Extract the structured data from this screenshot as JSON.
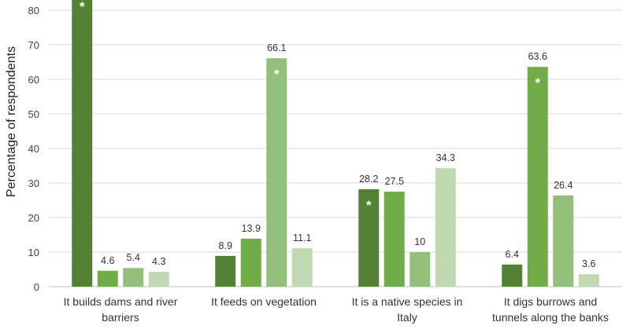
{
  "chart_data": {
    "type": "bar",
    "title": "",
    "xlabel": "",
    "ylabel": "Percentage of respondents",
    "ylim": [
      0,
      80
    ],
    "yticks": [
      0,
      10,
      20,
      30,
      40,
      50,
      60,
      70,
      80
    ],
    "grid": true,
    "categories": [
      [
        "It builds dams and river",
        "barriers"
      ],
      [
        "It feeds on vegetation"
      ],
      [
        "It is a native species in",
        "Italy"
      ],
      [
        "It digs burrows and",
        "tunnels along the banks"
      ]
    ],
    "series": [
      {
        "color": "#548235",
        "values": [
          null,
          8.9,
          28.2,
          6.4
        ],
        "labels": [
          "",
          "8.9",
          "28.2",
          "6.4"
        ],
        "stars": [
          true,
          false,
          true,
          false
        ]
      },
      {
        "color": "#70ad47",
        "values": [
          4.6,
          13.9,
          27.5,
          63.6
        ],
        "labels": [
          "4.6",
          "13.9",
          "27.5",
          "63.6"
        ],
        "stars": [
          false,
          false,
          false,
          true
        ]
      },
      {
        "color": "#92c07a",
        "values": [
          5.4,
          66.1,
          10,
          26.4
        ],
        "labels": [
          "5.4",
          "66.1",
          "10",
          "26.4"
        ],
        "stars": [
          false,
          true,
          false,
          false
        ]
      },
      {
        "color": "#c0d9b2",
        "values": [
          4.3,
          11.1,
          34.3,
          3.6
        ],
        "labels": [
          "4.3",
          "11.1",
          "34.3",
          "3.6"
        ],
        "stars": [
          false,
          false,
          false,
          false
        ]
      }
    ],
    "annotation": "*"
  }
}
